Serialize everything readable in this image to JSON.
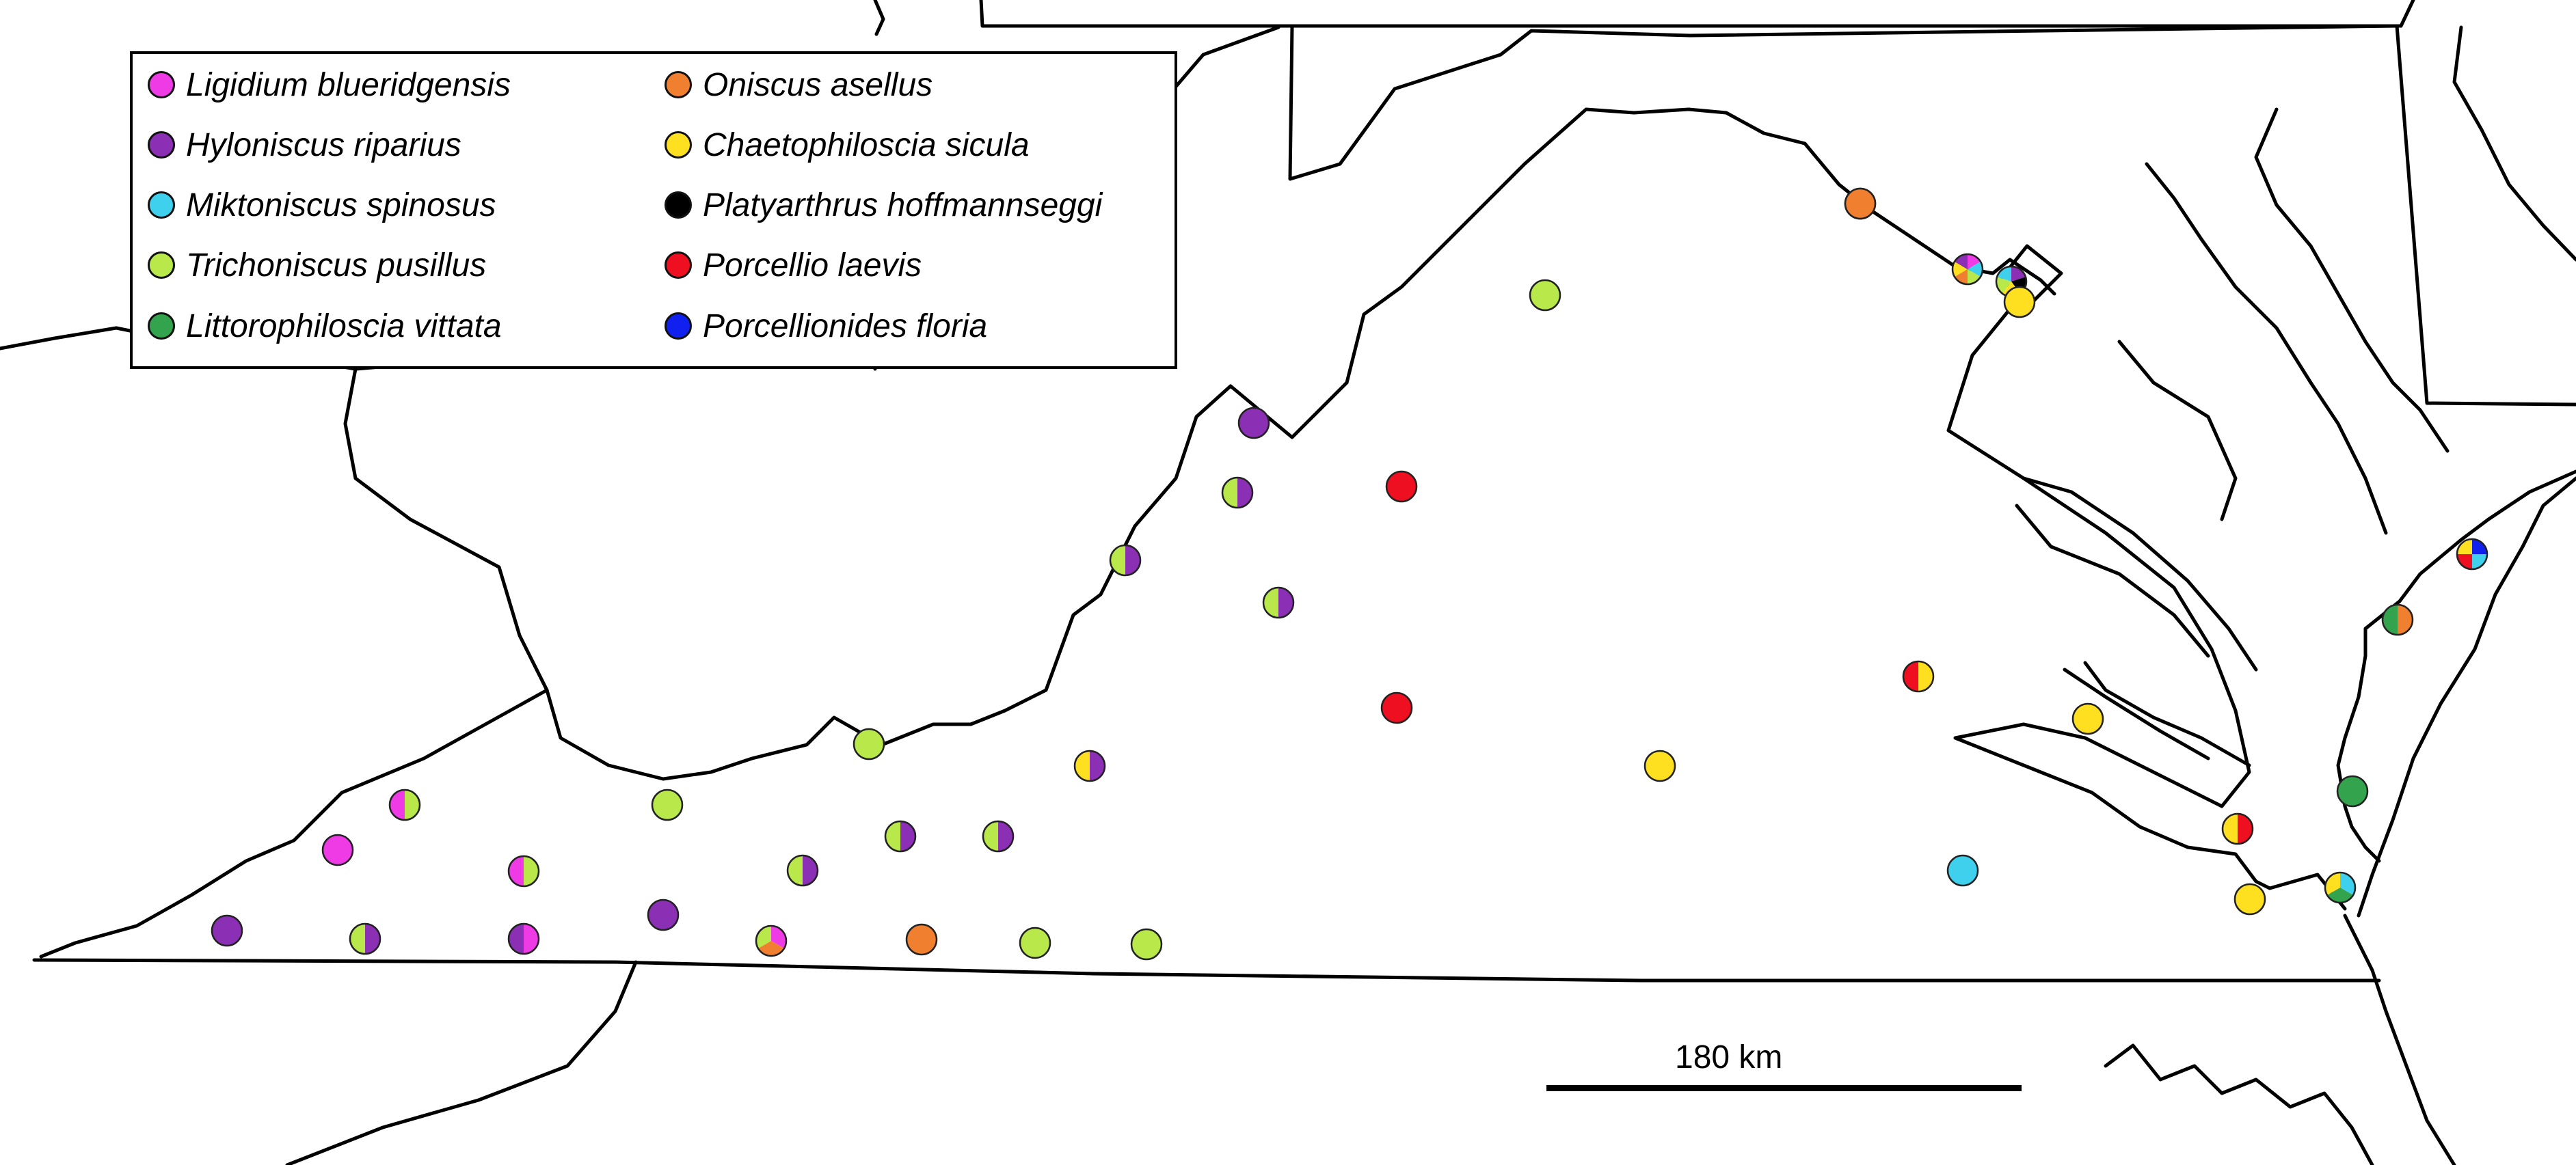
{
  "legend": {
    "items": [
      {
        "label": "Ligidium blueridgensis",
        "color": "#EE3BE6",
        "icon": "circle-marker"
      },
      {
        "label": "Hyloniscus riparius",
        "color": "#8B2FB5",
        "icon": "circle-marker"
      },
      {
        "label": "Miktoniscus spinosus",
        "color": "#3FD0EE",
        "icon": "circle-marker"
      },
      {
        "label": "Trichoniscus pusillus",
        "color": "#B8E84A",
        "icon": "circle-marker"
      },
      {
        "label": "Littorophiloscia vittata",
        "color": "#33A34D",
        "icon": "circle-marker"
      },
      {
        "label": "Oniscus asellus",
        "color": "#F08030",
        "icon": "circle-marker"
      },
      {
        "label": "Chaetophiloscia sicula",
        "color": "#FFE020",
        "icon": "circle-marker"
      },
      {
        "label": "Platyarthrus hoffmannseggi",
        "color": "#000000",
        "icon": "circle-marker"
      },
      {
        "label": "Porcellio laevis",
        "color": "#EE1020",
        "icon": "circle-marker"
      },
      {
        "label": "Porcellionides floria",
        "color": "#1020EE",
        "icon": "circle-marker"
      }
    ]
  },
  "scale": {
    "label": "180 km"
  },
  "records": [
    {
      "species": [
        1
      ]
    },
    {
      "species": [
        0
      ]
    },
    {
      "species": [
        3,
        0
      ]
    },
    {
      "species": [
        1,
        3
      ]
    },
    {
      "species": [
        0,
        1
      ]
    },
    {
      "species": [
        3,
        0
      ]
    },
    {
      "species": [
        1
      ]
    },
    {
      "species": [
        0,
        5,
        3
      ]
    },
    {
      "species": [
        3
      ]
    },
    {
      "species": [
        1,
        3
      ]
    },
    {
      "species": [
        1,
        3
      ]
    },
    {
      "species": [
        5
      ]
    },
    {
      "species": [
        1,
        3
      ]
    },
    {
      "species": [
        3
      ]
    },
    {
      "species": [
        1,
        3
      ]
    },
    {
      "species": [
        1,
        6
      ]
    },
    {
      "species": [
        3
      ]
    },
    {
      "species": [
        3
      ]
    },
    {
      "species": [
        1,
        3
      ]
    },
    {
      "species": [
        1,
        3
      ]
    },
    {
      "species": [
        1
      ]
    },
    {
      "species": [
        5,
        3
      ]
    },
    {
      "species": [
        8
      ]
    },
    {
      "species": [
        8
      ]
    },
    {
      "species": [
        3
      ]
    },
    {
      "species": [
        6
      ]
    },
    {
      "species": [
        5
      ]
    },
    {
      "species": [
        0,
        2,
        3,
        5,
        6,
        1
      ]
    },
    {
      "species": [
        1,
        7,
        6,
        3,
        2
      ]
    },
    {
      "species": [
        6
      ]
    },
    {
      "species": [
        6,
        8
      ]
    },
    {
      "species": [
        6
      ]
    },
    {
      "species": [
        8,
        6
      ]
    },
    {
      "species": [
        2
      ]
    },
    {
      "species": [
        6
      ]
    },
    {
      "species": [
        2,
        4,
        6
      ]
    },
    {
      "species": [
        4
      ]
    },
    {
      "species": [
        5,
        4
      ]
    },
    {
      "species": [
        9,
        2,
        8,
        6
      ]
    }
  ]
}
